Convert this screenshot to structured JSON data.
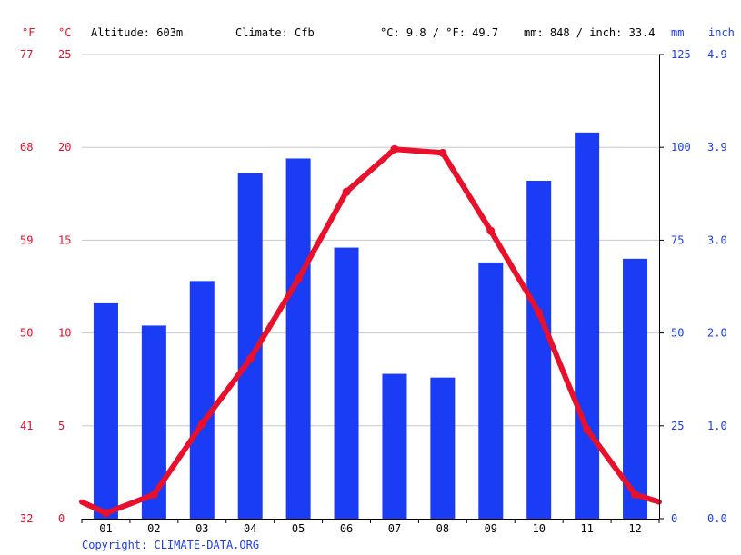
{
  "header": {
    "unit_f": "°F",
    "unit_c": "°C",
    "altitude": "Altitude: 603m",
    "climate": "Climate: Cfb",
    "avg_temp": "°C: 9.8 / °F: 49.7",
    "precip_total": "mm: 848 / inch: 33.4",
    "unit_mm": "mm",
    "unit_inch": "inch"
  },
  "copyright": "Copyright: CLIMATE-DATA.ORG",
  "colors": {
    "temperature": "#e8102a",
    "precipitation": "#1a3cf5",
    "grid": "#c8c8c8",
    "axis": "#000000"
  },
  "chart_data": {
    "type": "bar",
    "categories": [
      "01",
      "02",
      "03",
      "04",
      "05",
      "06",
      "07",
      "08",
      "09",
      "10",
      "11",
      "12"
    ],
    "series": [
      {
        "type": "bar",
        "axis": "right",
        "values": [
          58,
          52,
          64,
          93,
          97,
          73,
          39,
          38,
          69,
          91,
          104,
          70
        ]
      },
      {
        "type": "line",
        "axis": "left",
        "values": [
          0.3,
          1.3,
          5.1,
          8.6,
          12.9,
          17.6,
          19.9,
          19.7,
          15.5,
          11.1,
          4.8,
          1.3
        ],
        "edge_start": 0.9,
        "edge_end": 0.9
      }
    ],
    "left_axis_c": {
      "ticks": [
        "25",
        "20",
        "15",
        "10",
        "5",
        "0"
      ],
      "min": 0,
      "max": 25
    },
    "left_axis_f": {
      "ticks": [
        "77",
        "68",
        "59",
        "50",
        "41",
        "32"
      ]
    },
    "right_axis_mm": {
      "ticks": [
        "125",
        "100",
        "75",
        "50",
        "25",
        "0"
      ],
      "min": 0,
      "max": 125
    },
    "right_axis_inch": {
      "ticks": [
        "4.9",
        "3.9",
        "3.0",
        "2.0",
        "1.0",
        "0.0"
      ]
    },
    "grid": true
  }
}
